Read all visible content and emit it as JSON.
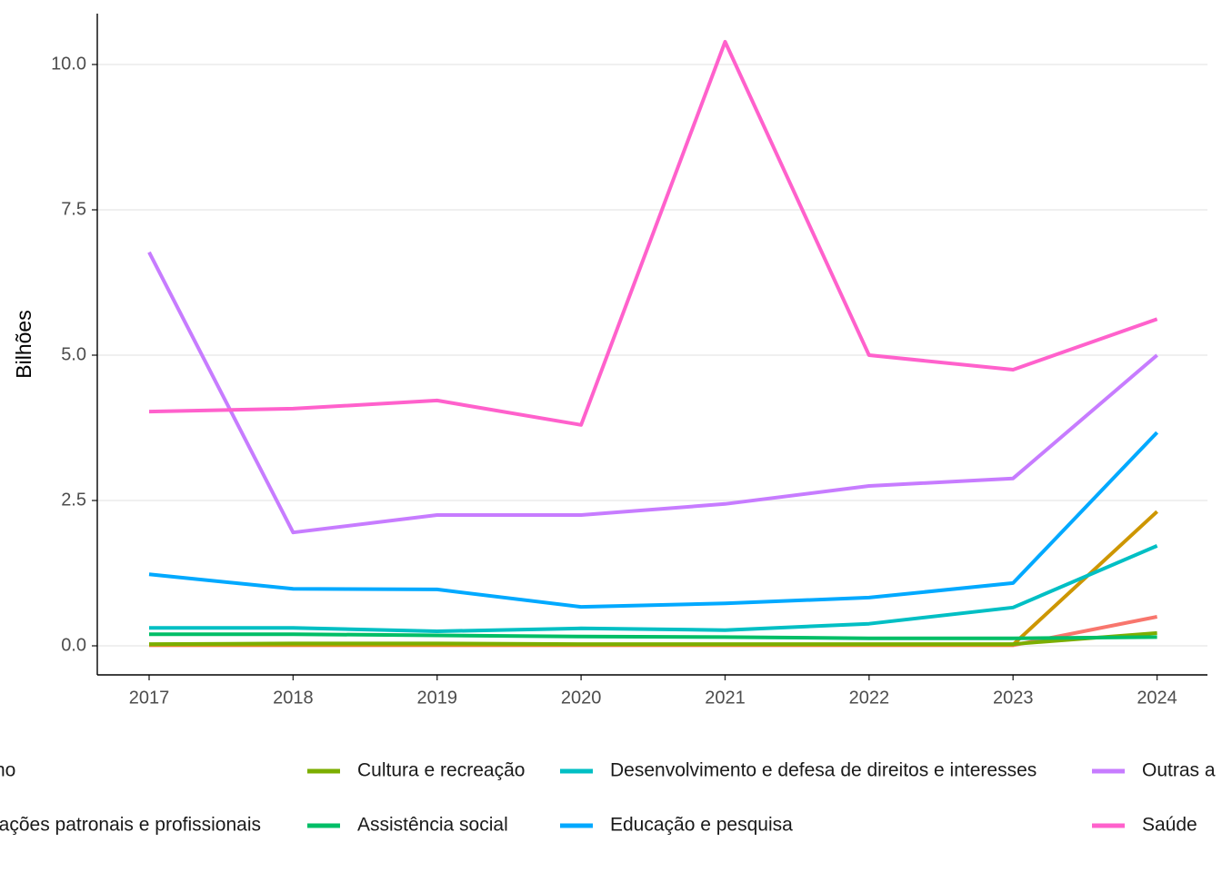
{
  "chart_data": {
    "type": "line",
    "y_label": "Bilhões",
    "x": [
      2017,
      2018,
      2019,
      2020,
      2021,
      2022,
      2023,
      2024
    ],
    "xlim": [
      2016.64,
      2024.35
    ],
    "xticks": [
      2017,
      2018,
      2019,
      2020,
      2021,
      2022,
      2023,
      2024
    ],
    "ylim": [
      -0.5,
      10.875
    ],
    "yticks": [
      {
        "value": 0,
        "label": "0.0"
      },
      {
        "value": 2.5,
        "label": "2.5"
      },
      {
        "value": 5,
        "label": "5.0"
      },
      {
        "value": 7.5,
        "label": "7.5"
      },
      {
        "value": 10,
        "label": "10.0"
      }
    ],
    "grid": true,
    "series": [
      {
        "name": "no",
        "color": "#F8766D",
        "values": [
          0.01,
          0.01,
          0.01,
          0.01,
          0.01,
          0.01,
          0.01,
          0.5
        ]
      },
      {
        "name": "iações patronais e profissionais",
        "color": "#CD9600",
        "values": [
          0.02,
          0.02,
          0.02,
          0.02,
          0.02,
          0.02,
          0.02,
          2.31
        ]
      },
      {
        "name": "Cultura e recreação",
        "color": "#7CAE00",
        "values": [
          0.03,
          0.04,
          0.04,
          0.03,
          0.03,
          0.03,
          0.03,
          0.22
        ]
      },
      {
        "name": "Assistência social",
        "color": "#00BE67",
        "values": [
          0.2,
          0.2,
          0.18,
          0.16,
          0.15,
          0.13,
          0.13,
          0.15
        ]
      },
      {
        "name": "Desenvolvimento e defesa de direitos e interesses",
        "color": "#00BFC4",
        "values": [
          0.31,
          0.31,
          0.25,
          0.3,
          0.27,
          0.38,
          0.66,
          1.72
        ]
      },
      {
        "name": "Educação e pesquisa",
        "color": "#00A9FF",
        "values": [
          1.23,
          0.98,
          0.97,
          0.67,
          0.73,
          0.83,
          1.08,
          3.67
        ]
      },
      {
        "name": "Outras a",
        "color": "#C77CFF",
        "values": [
          6.77,
          1.95,
          2.25,
          2.25,
          2.44,
          2.75,
          2.88,
          5.0
        ]
      },
      {
        "name": "Saúde",
        "color": "#FF61CC",
        "values": [
          4.03,
          4.08,
          4.22,
          3.8,
          10.39,
          5.0,
          4.75,
          5.62
        ]
      }
    ]
  }
}
